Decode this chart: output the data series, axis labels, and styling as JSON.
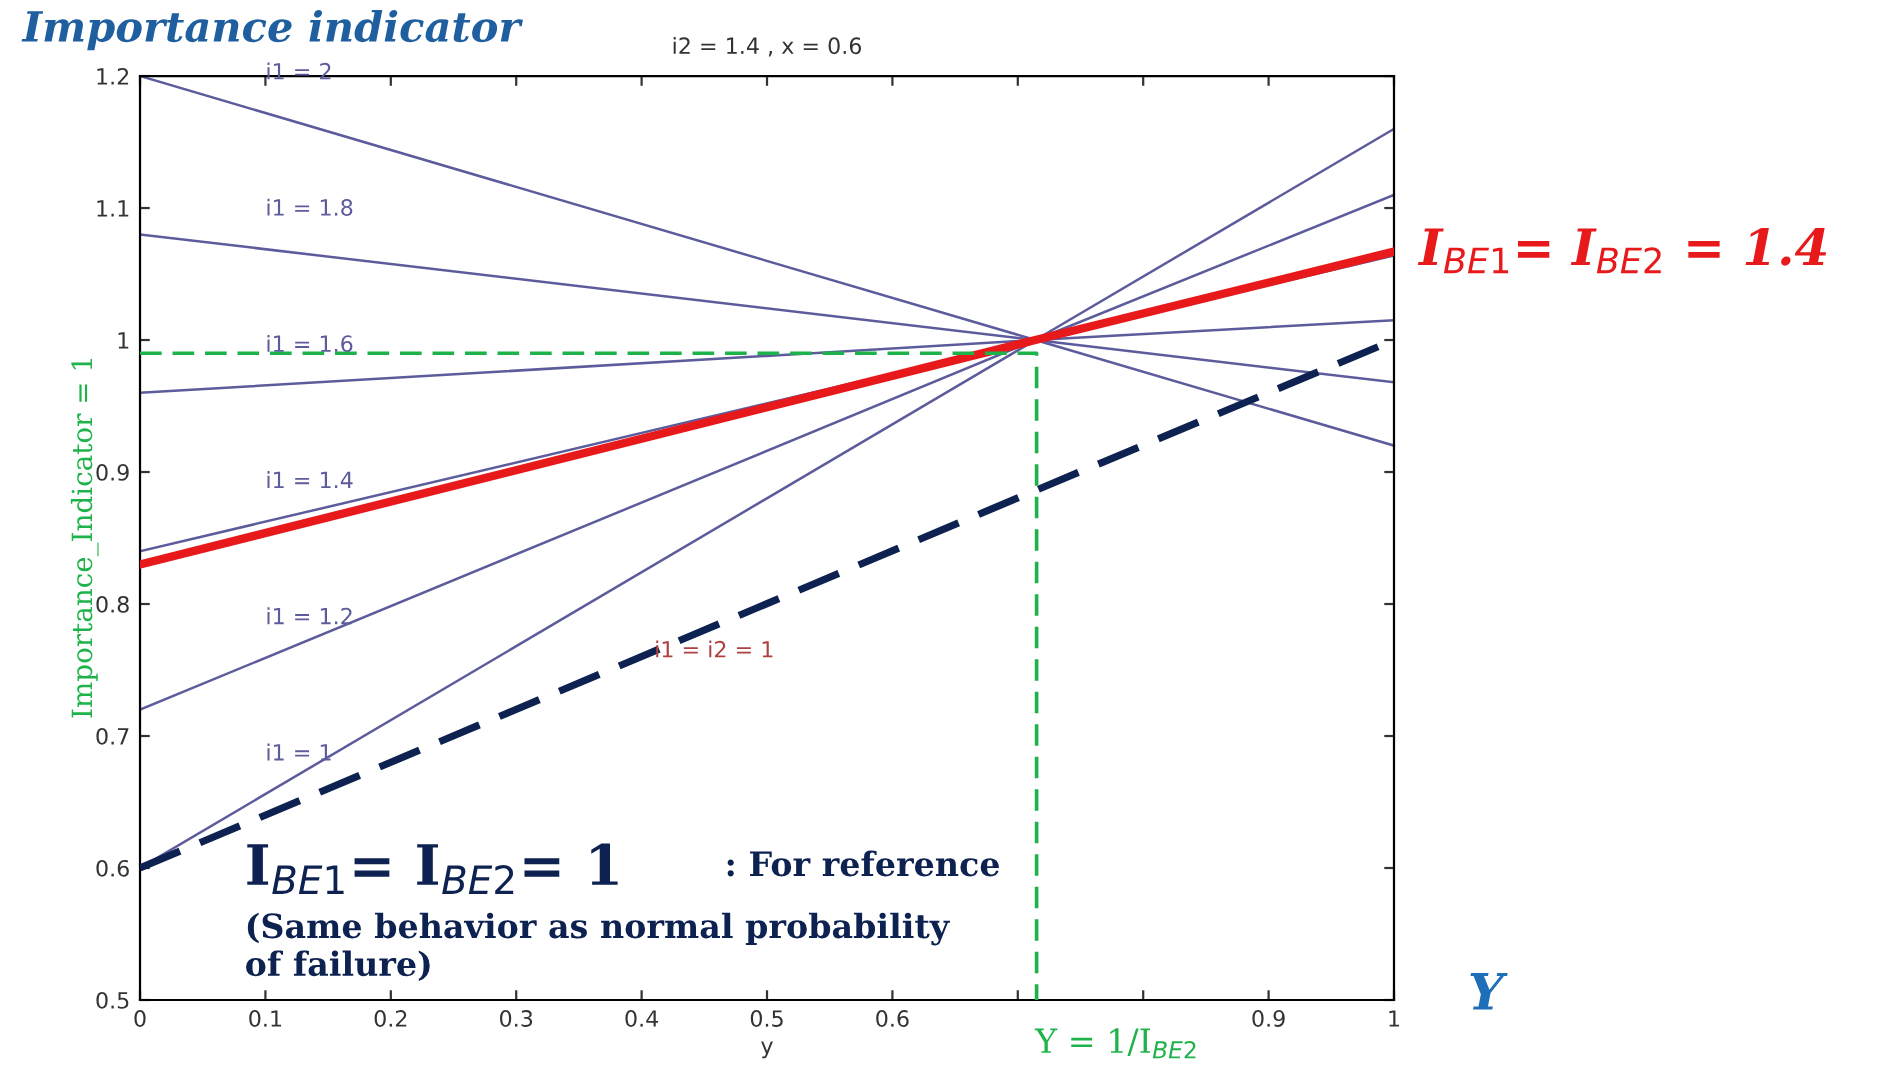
{
  "chart_data": {
    "type": "line",
    "title": "Importance indicator",
    "subtitle": "i2 = 1.4 , x = 0.6",
    "xlabel": "y",
    "xlim": [
      0,
      1
    ],
    "ylim": [
      0.5,
      1.2
    ],
    "xticks": [
      0,
      0.1,
      0.2,
      0.3,
      0.4,
      0.5,
      0.6,
      {
        "value": 0.7,
        "label": null
      },
      {
        "value": 0.8,
        "label": null
      },
      0.9,
      1
    ],
    "yticks": [
      0.5,
      0.6,
      0.7,
      0.8,
      0.9,
      1,
      1.1,
      1.2
    ],
    "grid": false,
    "legend": false,
    "series": [
      {
        "name": "i1 = 2",
        "color": "#5c5c9c",
        "x": [
          0,
          0.714,
          1
        ],
        "values": [
          1.2,
          1.0,
          0.92
        ]
      },
      {
        "name": "i1 = 1.8",
        "color": "#5c5c9c",
        "x": [
          0,
          0.714,
          1
        ],
        "values": [
          1.08,
          1.0,
          0.968
        ]
      },
      {
        "name": "i1 = 1.6",
        "color": "#5c5c9c",
        "x": [
          0,
          0.714,
          1
        ],
        "values": [
          0.96,
          1.0,
          1.015
        ]
      },
      {
        "name": "i1 = 1.4",
        "color": "#5c5c9c",
        "x": [
          0,
          0.714,
          1
        ],
        "values": [
          0.84,
          1.0,
          1.064
        ]
      },
      {
        "name": "i1 = 1.2",
        "color": "#5c5c9c",
        "x": [
          0,
          0.714,
          1
        ],
        "values": [
          0.72,
          1.0,
          1.11
        ]
      },
      {
        "name": "i1 = 1",
        "color": "#5c5c9c",
        "x": [
          0,
          0.714,
          1
        ],
        "values": [
          0.6,
          1.0,
          1.16
        ]
      },
      {
        "name": "I$_{BE1}$= I$_{BE2}$ = 1.4",
        "color": "#e8191a",
        "x": [
          0,
          0.714,
          1
        ],
        "values": [
          0.83,
          1.0,
          1.067
        ]
      },
      {
        "name": "i1 = i2 = 1",
        "color": "#0d2250",
        "line_style": "dashed",
        "x": [
          0,
          0.714,
          1
        ],
        "values": [
          0.6,
          0.886,
          1.0
        ]
      },
      {
        "color": "#1db34a",
        "line_style": "dashed",
        "x": [
          0,
          0.715,
          0.715
        ],
        "values": [
          0.99,
          0.99,
          0.5
        ]
      }
    ],
    "annotations": [
      "I$_{BE1}$= I$_{BE2}$= 1",
      ": For reference",
      "(Same behavior as normal probability\nof failure)",
      "Importance_Indicator = 1",
      "Y = 1/I$_{BE2}$",
      "Y"
    ]
  }
}
